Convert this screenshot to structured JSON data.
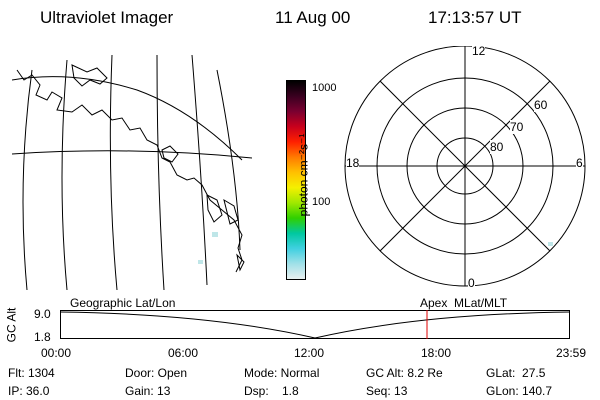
{
  "header": {
    "instrument": "Ultraviolet Imager",
    "date": "11 Aug 00",
    "time": "17:13:57 UT"
  },
  "colorbar": {
    "unit": "photon cm⁻²s⁻¹",
    "ticks": [
      "1000",
      "100"
    ],
    "colors": [
      "#000000",
      "#3a0020",
      "#7a0030",
      "#c8001c",
      "#ff2000",
      "#ff7a00",
      "#ffc000",
      "#f5f000",
      "#a0e800",
      "#30d000",
      "#00c8a0",
      "#40d0e0",
      "#a0e0e8",
      "#e8f0f0"
    ]
  },
  "map": {
    "projection_label": "Geographic Lat/Lon"
  },
  "polar": {
    "label": "Apex  MLat/MLT",
    "mlt_labels": {
      "top": "12",
      "bottom": "0",
      "left": "18",
      "right": "6"
    },
    "mlat_labels": [
      "60",
      "70",
      "80"
    ]
  },
  "timeline": {
    "y_axis_title": "GC Alt",
    "y_ticks": [
      "9.0",
      "1.8"
    ],
    "x_ticks": [
      "00:00",
      "06:00",
      "12:00",
      "18:00",
      "23:59"
    ],
    "marker_color": "#e00000"
  },
  "info": {
    "flt": "Flt: 1304",
    "door": "Door: Open",
    "mode": "Mode: Normal",
    "gc_alt": "GC Alt: 8.2 Re",
    "glat": "GLat:  27.5",
    "ip": "IP: 36.0",
    "gain": "Gain: 13",
    "dsp": "Dsp:    1.8",
    "seq": "Seq: 13",
    "glon": "GLon: 140.7"
  }
}
